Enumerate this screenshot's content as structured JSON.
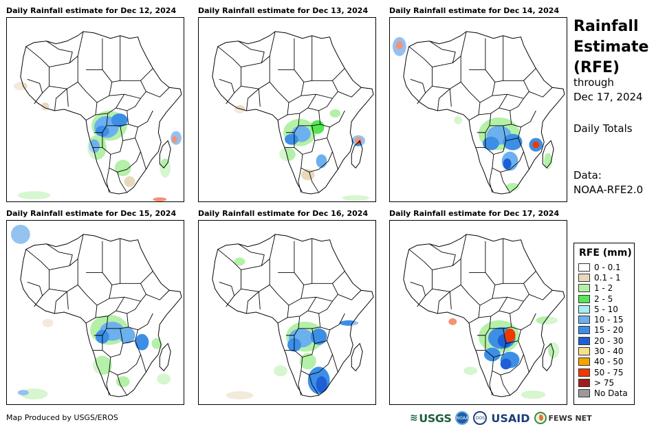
{
  "panels": [
    {
      "title": "Daily Rainfall estimate for Dec 12, 2024"
    },
    {
      "title": "Daily Rainfall estimate for Dec 13, 2024"
    },
    {
      "title": "Daily Rainfall estimate for Dec 14, 2024"
    },
    {
      "title": "Daily Rainfall estimate for Dec 15, 2024"
    },
    {
      "title": "Daily Rainfall estimate for Dec 16, 2024"
    },
    {
      "title": "Daily Rainfall estimate for Dec 17, 2024"
    }
  ],
  "sidebar": {
    "title_lines": [
      "Rainfall",
      "Estimate",
      "(RFE)"
    ],
    "through_label": "through",
    "through_date": "Dec 17, 2024",
    "totals_label": "Daily Totals",
    "data_label": "Data:",
    "data_source": "NOAA-RFE2.0"
  },
  "legend": {
    "title": "RFE (mm)",
    "items": [
      {
        "label": "0 - 0.1",
        "color": "#ffffff"
      },
      {
        "label": "0.1 - 1",
        "color": "#e8d9bd"
      },
      {
        "label": "1 - 2",
        "color": "#b4f0a8"
      },
      {
        "label": "2 - 5",
        "color": "#55e655"
      },
      {
        "label": "5 - 10",
        "color": "#a8ecf4"
      },
      {
        "label": "10 - 15",
        "color": "#6cb0ee"
      },
      {
        "label": "15 - 20",
        "color": "#3d8fe6"
      },
      {
        "label": "20 - 30",
        "color": "#1e5fd6"
      },
      {
        "label": "30 - 40",
        "color": "#f6e08a"
      },
      {
        "label": "40 - 50",
        "color": "#f5a400"
      },
      {
        "label": "50 - 75",
        "color": "#ee3a00"
      },
      {
        "label": "> 75",
        "color": "#a01c1c"
      },
      {
        "label": "No Data",
        "color": "#9a9a9a"
      }
    ]
  },
  "footer": {
    "credit": "Map Produced by USGS/EROS",
    "logos": {
      "usgs": "USGS",
      "noaa": "NOAA",
      "dos": "DOS",
      "usaid": "USAID",
      "fews": "FEWS NET"
    }
  }
}
